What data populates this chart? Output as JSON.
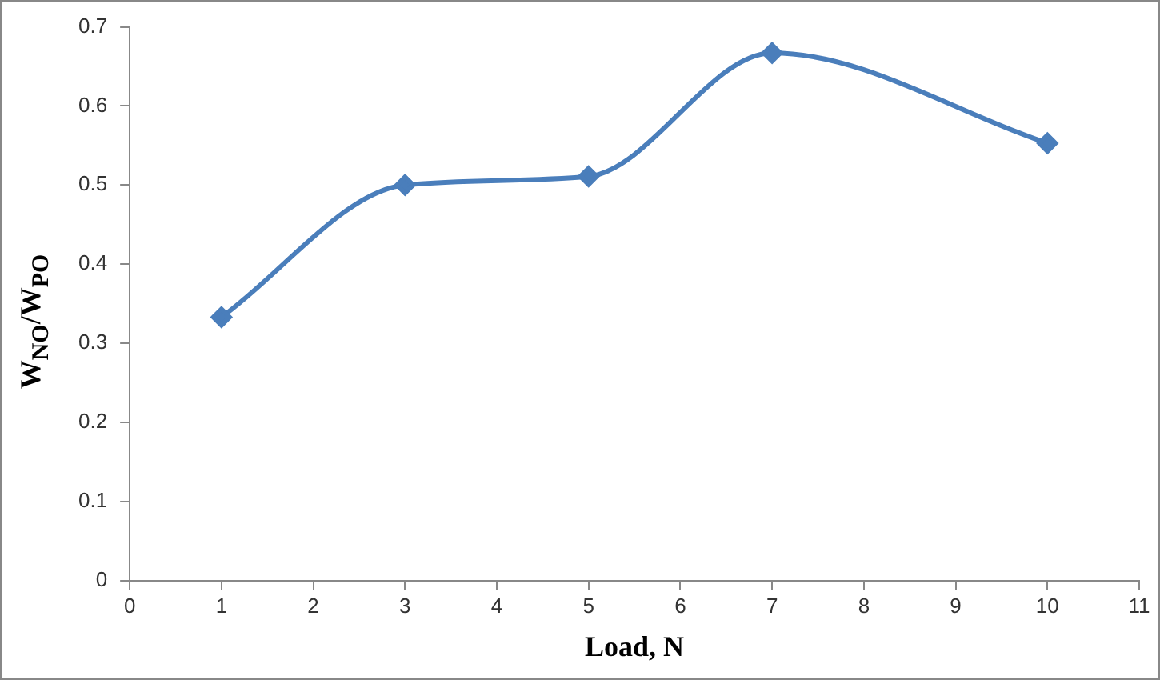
{
  "chart_data": {
    "type": "line",
    "xlabel": "Load, N",
    "ylabel": "W$_{NO}$/W$_{PO}$",
    "x": [
      1,
      3,
      5,
      7,
      10
    ],
    "series": [
      {
        "color": "#4a7ebb",
        "values": [
          0.333,
          0.5,
          0.511,
          0.667,
          0.553
        ]
      }
    ],
    "xlim": [
      0,
      11
    ],
    "xticks": [
      0,
      1,
      2,
      3,
      4,
      5,
      6,
      7,
      8,
      9,
      10,
      11
    ],
    "ylim": [
      0,
      0.7
    ],
    "yticks": [
      0,
      0.1,
      0.2,
      0.3,
      0.4,
      0.5,
      0.6,
      0.7
    ],
    "grid": false,
    "legend": false,
    "marker": "diamond",
    "line_style": "solid"
  }
}
